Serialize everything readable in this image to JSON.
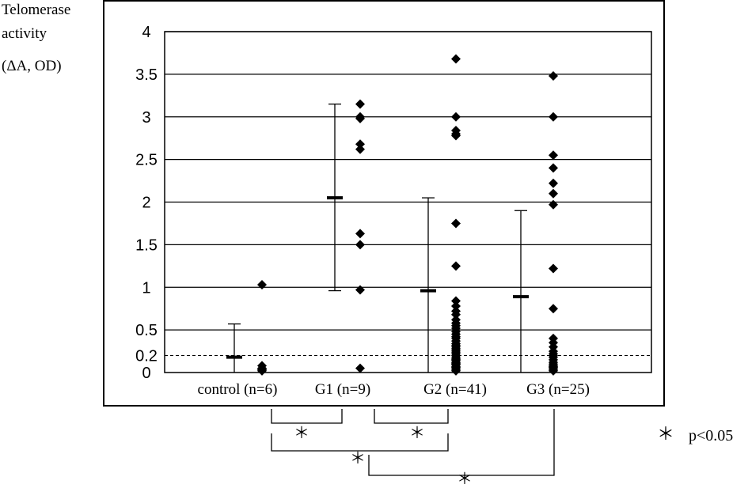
{
  "chart_data": {
    "type": "scatter",
    "ylabel_lines": [
      "Telomerase",
      "activity",
      "(ΔA, OD)"
    ],
    "ylim": [
      0,
      4
    ],
    "yticks": [
      "4",
      "3.5",
      "3",
      "2.5",
      "2",
      "1.5",
      "1",
      "0.5",
      "0.2",
      "0"
    ],
    "ytick_values": [
      4,
      3.5,
      3,
      2.5,
      2,
      1.5,
      1,
      0.5,
      0.2,
      0
    ],
    "grid": true,
    "threshold": 0.2,
    "categories": [
      "control (n=6)",
      "G1 (n=9)",
      "G2 (n=41)",
      "G3 (n=25)"
    ],
    "groups": [
      {
        "label": "control (n=6)",
        "mean": 0.18,
        "sd_upper": 0.57,
        "points": [
          1.03,
          0.08,
          0.05,
          0.04,
          0.03,
          0.02
        ]
      },
      {
        "label": "G1 (n=9)",
        "mean": 2.05,
        "sd_upper": 3.15,
        "sd_lower": 0.96,
        "points": [
          3.15,
          3.0,
          2.98,
          2.68,
          2.62,
          1.63,
          1.5,
          0.97,
          0.05
        ]
      },
      {
        "label": "G2 (n=41)",
        "mean": 0.96,
        "sd_upper": 2.05,
        "points": [
          3.68,
          3.0,
          2.84,
          2.8,
          2.78,
          1.75,
          1.25,
          0.84,
          0.78,
          0.72,
          0.68,
          0.62,
          0.58,
          0.55,
          0.52,
          0.48,
          0.45,
          0.42,
          0.4,
          0.37,
          0.34,
          0.32,
          0.3,
          0.28,
          0.26,
          0.24,
          0.22,
          0.2,
          0.18,
          0.16,
          0.15,
          0.14,
          0.12,
          0.11,
          0.1,
          0.09,
          0.07,
          0.06,
          0.05,
          0.03,
          0.02
        ]
      },
      {
        "label": "G3 (n=25)",
        "mean": 0.89,
        "sd_upper": 1.9,
        "points": [
          3.48,
          3.0,
          2.55,
          2.4,
          2.22,
          2.1,
          1.97,
          1.22,
          0.75,
          0.4,
          0.35,
          0.3,
          0.25,
          0.22,
          0.2,
          0.18,
          0.15,
          0.12,
          0.1,
          0.08,
          0.07,
          0.06,
          0.05,
          0.03,
          0.02
        ]
      }
    ],
    "comparisons": [
      {
        "from": "control (n=6)",
        "to": "G1 (n=9)",
        "label": ""
      },
      {
        "from": "G1 (n=9)",
        "to": "G2 (n=41)",
        "label": ""
      },
      {
        "from": "control (n=6)",
        "to": "G1 (n=9)",
        "label": "＊"
      },
      {
        "from": "G1 (n=9)",
        "to": "G2 (n=41)",
        "label": "＊"
      },
      {
        "from": "control (n=6)",
        "to": "G2 (n=41)",
        "label": "＊"
      },
      {
        "from": "G1 (n=9)",
        "to": "G3 (n=25)",
        "label": "＊"
      }
    ],
    "legend_note": {
      "symbol": "＊",
      "text": "p<0.05"
    }
  }
}
